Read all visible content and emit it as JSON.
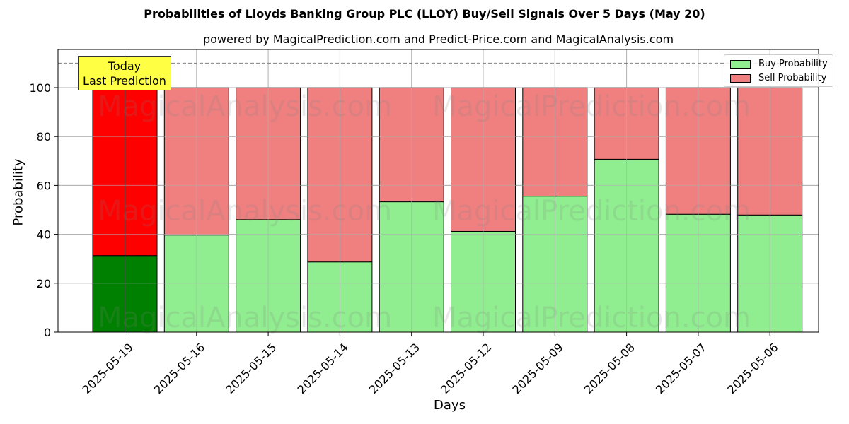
{
  "chart_data": {
    "type": "bar",
    "stacked": true,
    "title": "Probabilities of Lloyds Banking Group PLC (LLOY) Buy/Sell Signals Over 5 Days (May 20)",
    "subtitle": "powered by MagicalPrediction.com and Predict-Price.com and MagicalAnalysis.com",
    "xlabel": "Days",
    "ylabel": "Probability",
    "ylim": [
      0,
      115
    ],
    "yticks": [
      0,
      20,
      40,
      60,
      80,
      100
    ],
    "grid": true,
    "legend_position": "upper right",
    "categories": [
      "2025-05-19",
      "2025-05-16",
      "2025-05-15",
      "2025-05-14",
      "2025-05-13",
      "2025-05-12",
      "2025-05-09",
      "2025-05-08",
      "2025-05-07",
      "2025-05-06"
    ],
    "series": [
      {
        "name": "Buy Probability",
        "color": "#90ee90",
        "highlight_color": "#008000",
        "values": [
          31.3,
          39.7,
          46.0,
          28.7,
          53.3,
          41.2,
          55.6,
          70.7,
          48.2,
          47.9
        ]
      },
      {
        "name": "Sell Probability",
        "color": "#f08080",
        "highlight_color": "#ff0000",
        "values": [
          68.7,
          60.3,
          54.0,
          71.3,
          46.7,
          58.8,
          44.4,
          29.3,
          51.8,
          52.1
        ]
      }
    ],
    "reference_line": {
      "y": 110,
      "style": "dashed",
      "color": "#808080"
    },
    "annotations": [
      {
        "text": "Today\nLast Prediction",
        "line1": "Today",
        "line2": "Last Prediction",
        "category": "2025-05-19",
        "background": "#ffff44"
      }
    ],
    "watermarks": [
      "MagicalAnalysis.com",
      "MagicalPrediction.com"
    ]
  },
  "legend": {
    "buy_label": "Buy Probability",
    "sell_label": "Sell Probability"
  }
}
